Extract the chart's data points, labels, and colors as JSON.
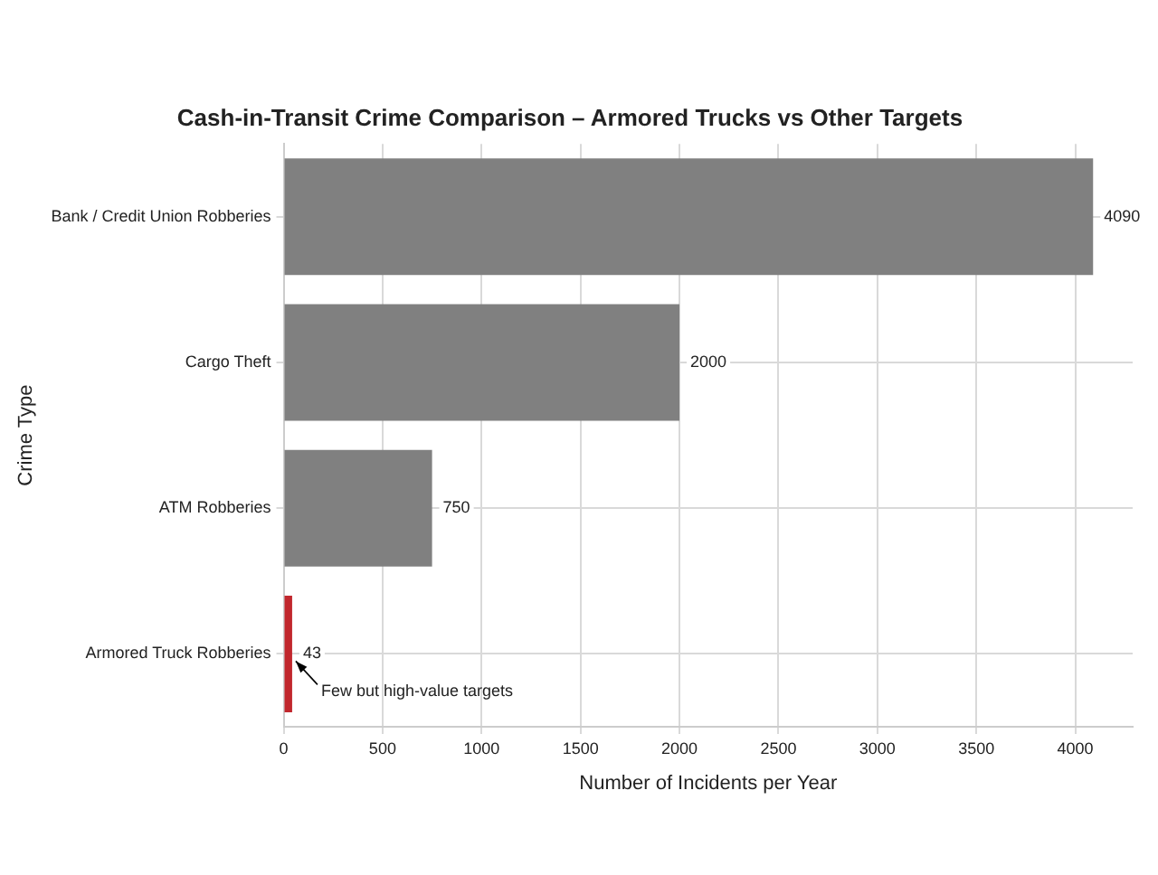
{
  "chart_data": {
    "type": "bar",
    "orientation": "horizontal",
    "title": "Cash-in-Transit Crime Comparison – Armored Trucks vs Other Targets",
    "xlabel": "Number of Incidents per Year",
    "ylabel": "Crime Type",
    "categories": [
      "Bank / Credit Union Robberies",
      "Cargo Theft",
      "ATM Robberies",
      "Armored Truck Robberies"
    ],
    "values": [
      4090,
      2000,
      750,
      43
    ],
    "colors": [
      "#808080",
      "#808080",
      "#808080",
      "#c1272d"
    ],
    "xlim": [
      0,
      4290
    ],
    "xticks": [
      0,
      500,
      1000,
      1500,
      2000,
      2500,
      3000,
      3500,
      4000
    ],
    "grid": true,
    "legend": false,
    "data_labels": true,
    "annotations": [
      {
        "text": "Few but high-value targets",
        "x": 43,
        "y": "Armored Truck Robberies"
      }
    ]
  }
}
